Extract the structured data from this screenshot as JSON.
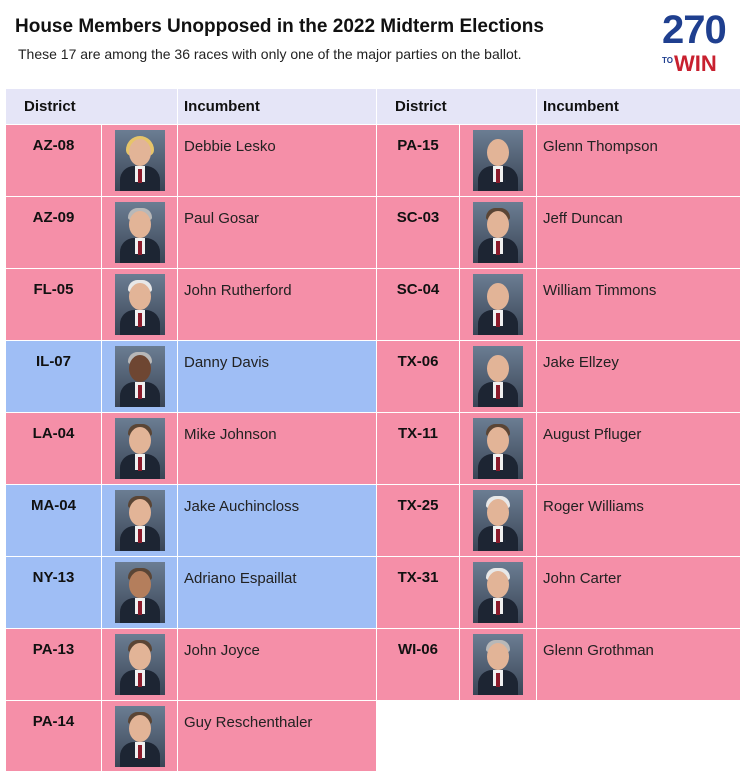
{
  "header": {
    "title": "House Members Unopposed in the 2022 Midterm Elections",
    "subtitle": "These 17 are among the 36 races with only one of the major parties on the ballot."
  },
  "logo": {
    "number": "270",
    "to": "TO",
    "win": "WIN"
  },
  "columns": {
    "district": "District",
    "incumbent": "Incumbent"
  },
  "colors": {
    "republican": "#f58fa8",
    "democrat": "#9fbef5",
    "header": "#e5e5f7",
    "logo_blue": "#1f3f8f",
    "logo_red": "#c8202f"
  },
  "rows": [
    {
      "left": {
        "district": "AZ-08",
        "incumbent": "Debbie Lesko",
        "party": "R",
        "photo": "portrait-debbie-lesko"
      },
      "right": {
        "district": "PA-15",
        "incumbent": "Glenn Thompson",
        "party": "R",
        "photo": "portrait-glenn-thompson"
      }
    },
    {
      "left": {
        "district": "AZ-09",
        "incumbent": "Paul Gosar",
        "party": "R",
        "photo": "portrait-paul-gosar"
      },
      "right": {
        "district": "SC-03",
        "incumbent": "Jeff Duncan",
        "party": "R",
        "photo": "portrait-jeff-duncan"
      }
    },
    {
      "left": {
        "district": "FL-05",
        "incumbent": "John Rutherford",
        "party": "R",
        "photo": "portrait-john-rutherford"
      },
      "right": {
        "district": "SC-04",
        "incumbent": "William Timmons",
        "party": "R",
        "photo": "portrait-william-timmons"
      }
    },
    {
      "left": {
        "district": "IL-07",
        "incumbent": "Danny Davis",
        "party": "D",
        "photo": "portrait-danny-davis"
      },
      "right": {
        "district": "TX-06",
        "incumbent": "Jake Ellzey",
        "party": "R",
        "photo": "portrait-jake-ellzey"
      }
    },
    {
      "left": {
        "district": "LA-04",
        "incumbent": "Mike Johnson",
        "party": "R",
        "photo": "portrait-mike-johnson"
      },
      "right": {
        "district": "TX-11",
        "incumbent": "August Pfluger",
        "party": "R",
        "photo": "portrait-august-pfluger"
      }
    },
    {
      "left": {
        "district": "MA-04",
        "incumbent": "Jake Auchincloss",
        "party": "D",
        "photo": "portrait-jake-auchincloss"
      },
      "right": {
        "district": "TX-25",
        "incumbent": "Roger Williams",
        "party": "R",
        "photo": "portrait-roger-williams"
      }
    },
    {
      "left": {
        "district": "NY-13",
        "incumbent": "Adriano Espaillat",
        "party": "D",
        "photo": "portrait-adriano-espaillat"
      },
      "right": {
        "district": "TX-31",
        "incumbent": "John Carter",
        "party": "R",
        "photo": "portrait-john-carter"
      }
    },
    {
      "left": {
        "district": "PA-13",
        "incumbent": "John Joyce",
        "party": "R",
        "photo": "portrait-john-joyce"
      },
      "right": {
        "district": "WI-06",
        "incumbent": "Glenn Grothman",
        "party": "R",
        "photo": "portrait-glenn-grothman"
      }
    },
    {
      "left": {
        "district": "PA-14",
        "incumbent": "Guy Reschenthaler",
        "party": "R",
        "photo": "portrait-guy-reschenthaler"
      },
      "right": {
        "district": "",
        "incumbent": "",
        "party": "",
        "photo": ""
      }
    }
  ]
}
